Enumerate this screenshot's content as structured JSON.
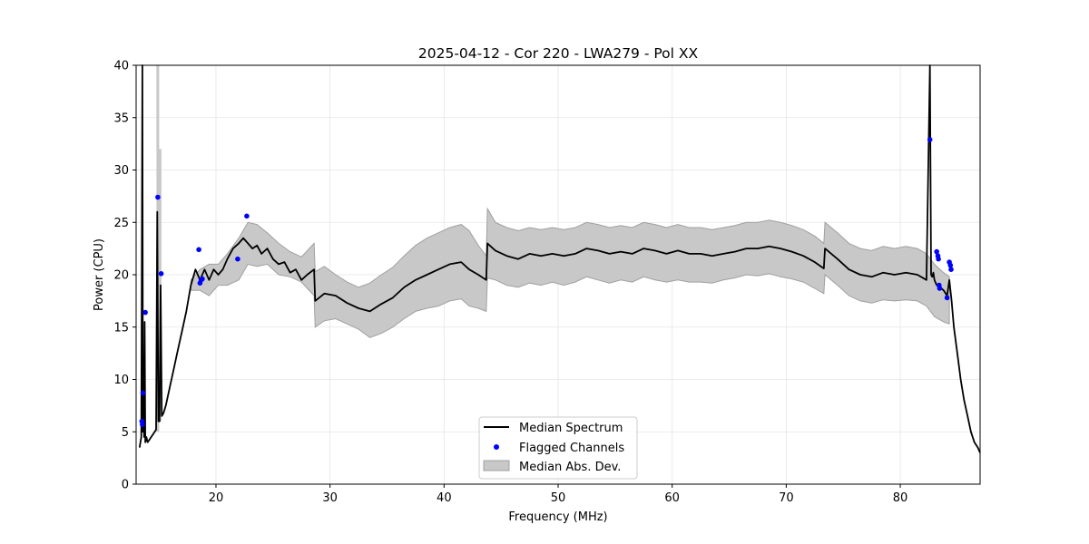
{
  "chart_data": {
    "type": "line",
    "title": "2025-04-12 - Cor 220 - LWA279 - Pol XX",
    "xlabel": "Frequency (MHz)",
    "ylabel": "Power (CPU)",
    "xlim": [
      13,
      87
    ],
    "ylim": [
      0,
      40
    ],
    "xticks": [
      20,
      30,
      40,
      50,
      60,
      70,
      80
    ],
    "yticks": [
      0,
      5,
      10,
      15,
      20,
      25,
      30,
      35,
      40
    ],
    "grid": true,
    "legend_position": "lower-center",
    "legend": [
      "Median Spectrum",
      "Flagged Channels",
      "Median Abs. Dev."
    ],
    "colors": {
      "median": "#000000",
      "flagged": "#0000ff",
      "mad_fill": "#c8c8c8",
      "mad_edge": "#a0a0a0"
    },
    "series": [
      {
        "name": "Median Spectrum",
        "x": [
          13.3,
          13.45,
          13.55,
          13.6,
          13.65,
          13.7,
          13.75,
          13.8,
          13.9,
          14.0,
          14.2,
          14.5,
          14.75,
          14.85,
          14.95,
          15.05,
          15.15,
          15.25,
          15.4,
          15.6,
          15.8,
          16.0,
          16.3,
          16.6,
          17.0,
          17.4,
          17.8,
          18.2,
          18.6,
          19.0,
          19.4,
          19.8,
          20.2,
          20.6,
          21.0,
          21.5,
          22.0,
          22.4,
          22.8,
          23.2,
          23.6,
          24.0,
          24.5,
          25.0,
          25.5,
          26.0,
          26.5,
          27.0,
          27.5,
          28.0,
          28.6,
          28.7,
          29.5,
          30.5,
          31.5,
          32.5,
          33.5,
          34.5,
          35.5,
          36.5,
          37.5,
          38.5,
          39.5,
          40.5,
          41.5,
          42.2,
          43.0,
          43.7,
          43.8,
          44.5,
          45.5,
          46.5,
          47.5,
          48.5,
          49.5,
          50.5,
          51.5,
          52.5,
          53.5,
          54.5,
          55.5,
          56.5,
          57.5,
          58.5,
          59.5,
          60.5,
          61.5,
          62.5,
          63.5,
          64.5,
          65.5,
          66.5,
          67.5,
          68.5,
          69.5,
          70.5,
          71.5,
          72.5,
          73.3,
          73.4,
          74.5,
          75.5,
          76.5,
          77.5,
          78.5,
          79.5,
          80.5,
          81.5,
          82.3,
          82.6,
          82.7,
          82.8,
          82.9,
          83.0,
          83.2,
          83.5,
          83.8,
          84.1,
          84.3,
          84.5,
          84.7,
          85.0,
          85.3,
          85.6,
          85.9,
          86.2,
          86.5,
          86.8,
          87.0
        ],
        "values": [
          3.5,
          4.5,
          40,
          5,
          12,
          4.5,
          15.5,
          4.0,
          4.5,
          4.0,
          4.3,
          4.8,
          5.2,
          26.0,
          6.0,
          6.0,
          19.0,
          6.5,
          6.8,
          7.5,
          8.5,
          9.5,
          11.0,
          12.5,
          14.5,
          16.5,
          19.0,
          20.5,
          19.5,
          20.5,
          19.5,
          20.5,
          20.0,
          20.5,
          21.5,
          22.5,
          23.0,
          23.5,
          23.0,
          22.5,
          22.8,
          22.0,
          22.5,
          21.5,
          21.0,
          21.2,
          20.2,
          20.5,
          19.5,
          20.0,
          20.5,
          17.5,
          18.2,
          18.0,
          17.3,
          16.8,
          16.5,
          17.2,
          17.8,
          18.8,
          19.5,
          20.0,
          20.5,
          21.0,
          21.2,
          20.5,
          20.0,
          19.5,
          23.0,
          22.3,
          21.8,
          21.5,
          22.0,
          21.8,
          22.0,
          21.8,
          22.0,
          22.5,
          22.3,
          22.0,
          22.2,
          22.0,
          22.5,
          22.3,
          22.0,
          22.3,
          22.0,
          22.0,
          21.8,
          22.0,
          22.2,
          22.5,
          22.5,
          22.7,
          22.5,
          22.2,
          21.8,
          21.2,
          20.6,
          22.5,
          21.5,
          20.5,
          20.0,
          19.8,
          20.2,
          20.0,
          20.2,
          20.0,
          19.5,
          40,
          20.0,
          19.8,
          20.2,
          19.5,
          19.0,
          18.8,
          18.5,
          18.0,
          19.5,
          17.5,
          15.0,
          12.5,
          10.0,
          8.0,
          6.5,
          5.0,
          4.0,
          3.5,
          3.0
        ]
      },
      {
        "name": "Median Abs. Dev.",
        "x": [
          17.8,
          18.6,
          19.4,
          20.2,
          21.0,
          22.0,
          22.8,
          23.6,
          24.5,
          25.5,
          26.5,
          27.5,
          28.6,
          28.7,
          29.5,
          30.5,
          31.5,
          32.5,
          33.5,
          34.5,
          35.5,
          36.5,
          37.5,
          38.5,
          39.5,
          40.5,
          41.5,
          42.2,
          43.0,
          43.7,
          43.8,
          44.5,
          45.5,
          46.5,
          47.5,
          48.5,
          49.5,
          50.5,
          51.5,
          52.5,
          53.5,
          54.5,
          55.5,
          56.5,
          57.5,
          58.5,
          59.5,
          60.5,
          61.5,
          62.5,
          63.5,
          64.5,
          65.5,
          66.5,
          67.5,
          68.5,
          69.5,
          70.5,
          71.5,
          72.5,
          73.3,
          73.4,
          74.5,
          75.5,
          76.5,
          77.5,
          78.5,
          79.5,
          80.5,
          81.5,
          82.3,
          83.0,
          83.8,
          84.3
        ],
        "upper": [
          19.5,
          20.5,
          21.0,
          21.0,
          22.0,
          23.5,
          25.0,
          24.8,
          24.0,
          23.0,
          22.2,
          21.7,
          23.0,
          20.3,
          20.8,
          20.0,
          19.3,
          18.8,
          19.2,
          20.0,
          20.7,
          21.8,
          22.8,
          23.5,
          24.0,
          24.5,
          24.8,
          24.2,
          22.8,
          21.8,
          26.3,
          25.0,
          24.5,
          24.2,
          24.5,
          24.3,
          24.5,
          24.3,
          24.5,
          25.0,
          24.8,
          24.5,
          24.7,
          24.5,
          25.0,
          24.8,
          24.5,
          24.8,
          24.5,
          24.5,
          24.3,
          24.5,
          24.7,
          25.0,
          25.0,
          25.2,
          25.0,
          24.7,
          24.3,
          23.7,
          23.0,
          25.0,
          24.0,
          23.0,
          22.5,
          22.3,
          22.7,
          22.5,
          22.7,
          22.5,
          22.0,
          21.0,
          20.2,
          19.8
        ],
        "lower": [
          18.5,
          18.5,
          18.0,
          19.0,
          19.0,
          19.5,
          21.0,
          20.8,
          21.0,
          20.0,
          19.8,
          19.3,
          18.0,
          15.0,
          15.6,
          15.8,
          15.3,
          14.8,
          14.0,
          14.4,
          15.0,
          15.8,
          16.5,
          16.8,
          17.0,
          17.5,
          17.7,
          17.0,
          16.8,
          16.5,
          19.7,
          19.5,
          19.0,
          18.8,
          19.2,
          19.0,
          19.3,
          19.0,
          19.3,
          19.8,
          19.5,
          19.2,
          19.5,
          19.3,
          19.8,
          19.5,
          19.3,
          19.5,
          19.3,
          19.3,
          19.2,
          19.5,
          19.7,
          20.0,
          19.9,
          20.1,
          19.8,
          19.6,
          19.3,
          18.7,
          18.2,
          20.0,
          19.0,
          18.0,
          17.5,
          17.3,
          17.6,
          17.5,
          17.6,
          17.5,
          17.0,
          16.0,
          15.5,
          15.3
        ]
      },
      {
        "name": "Flagged Channels",
        "x": [
          13.5,
          13.55,
          13.6,
          13.8,
          14.9,
          15.2,
          18.5,
          18.6,
          18.7,
          18.8,
          21.9,
          22.7,
          82.6,
          83.2,
          83.3,
          83.35,
          83.4,
          83.45,
          84.1,
          84.3,
          84.4,
          84.45
        ],
        "values": [
          6.0,
          5.7,
          8.7,
          16.4,
          27.4,
          20.1,
          22.4,
          19.2,
          19.5,
          19.6,
          21.5,
          25.6,
          32.9,
          22.2,
          21.8,
          21.5,
          19.0,
          18.7,
          17.8,
          21.2,
          20.9,
          20.5
        ]
      }
    ],
    "spikes": [
      {
        "name": "Median Abs. Dev.",
        "x": 14.9,
        "lower": 5,
        "upper": 40
      },
      {
        "name": "Median Abs. Dev.",
        "x": 15.1,
        "lower": 6,
        "upper": 32
      }
    ]
  }
}
